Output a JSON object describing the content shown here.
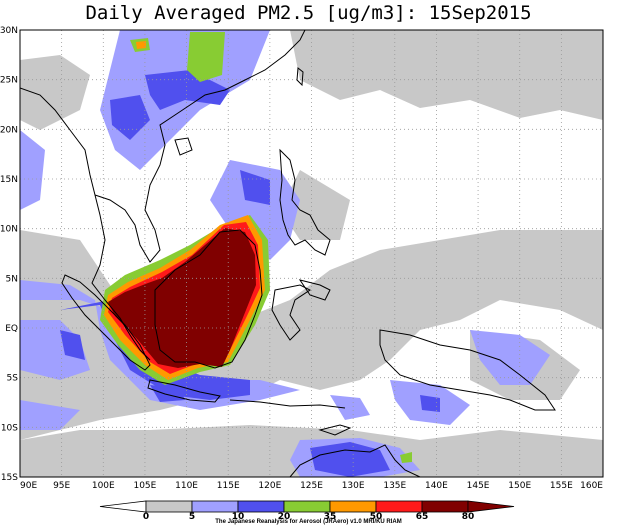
{
  "title": "Daily Averaged PM2.5 [ug/m3]: 15Sep2015",
  "map": {
    "lat_labels": [
      "30N",
      "25N",
      "20N",
      "15N",
      "10N",
      "5N",
      "EQ",
      "5S",
      "10S",
      "15S"
    ],
    "lon_labels": [
      "90E",
      "95E",
      "100E",
      "105E",
      "110E",
      "115E",
      "120E",
      "125E",
      "130E",
      "135E",
      "140E",
      "145E",
      "150E",
      "155E",
      "160E"
    ],
    "extent": {
      "lon_min": 90,
      "lon_max": 160,
      "lat_min": -15,
      "lat_max": 30
    },
    "gridlines": "dotted every 5 degrees"
  },
  "legend": {
    "levels": [
      "0",
      "5",
      "10",
      "20",
      "35",
      "50",
      "65",
      "80"
    ],
    "colors": [
      "#ffffff",
      "#c8c8c8",
      "#a0a0ff",
      "#5050ee",
      "#88cc33",
      "#ff9900",
      "#ff1a1a",
      "#800000"
    ]
  },
  "credit": "The Japanese Reanalysis for Aerosol (JRAero) v1.0 MRI/KU RIAM",
  "colors": {
    "level_5_10": "#c8c8c8",
    "level_10_20": "#a0a0ff",
    "level_20_35": "#5050ee",
    "level_35_50": "#88cc33",
    "level_50_65": "#ff9900",
    "level_65_80": "#ff1a1a",
    "level_80_plus": "#800000"
  }
}
